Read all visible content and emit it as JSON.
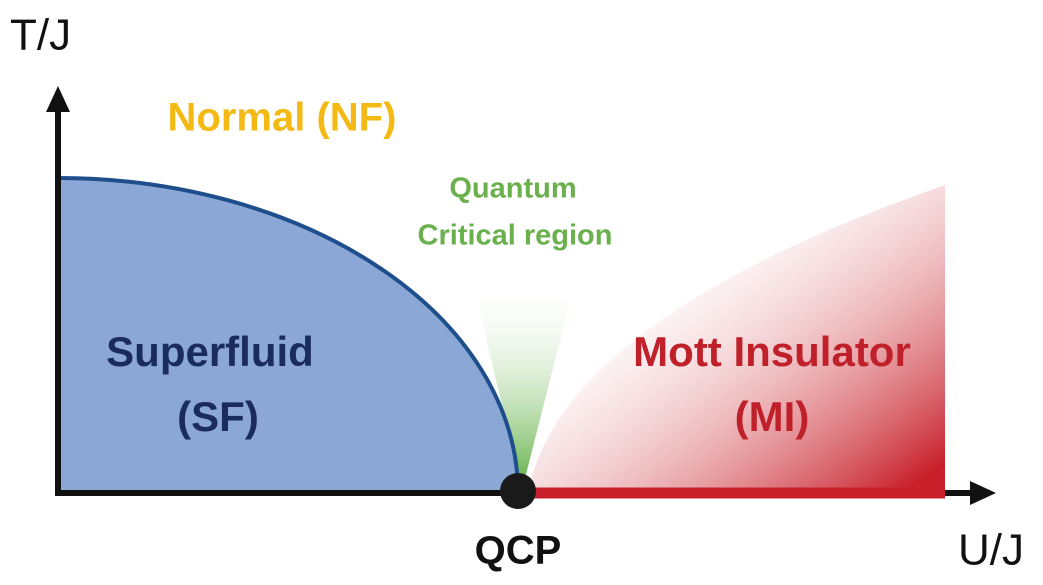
{
  "axes": {
    "y_label": "T/J",
    "x_label": "U/J"
  },
  "regions": {
    "normal": "Normal (NF)",
    "quantum_critical": [
      "Quantum",
      "Critical region"
    ],
    "superfluid": [
      "Superfluid",
      "(SF)"
    ],
    "mott": [
      "Mott Insulator",
      "(MI)"
    ]
  },
  "point": "QCP"
}
